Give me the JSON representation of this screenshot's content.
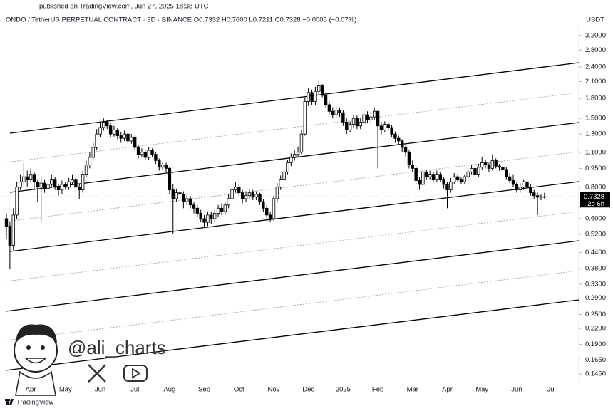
{
  "header": {
    "published": "published on TradingView.com, Jun 27, 2025 18:38 UTC",
    "symbol_line": "ONDO / TetherUS PERPETUAL CONTRACT · 3D · BINANCE  O0.7332  H0.7600  L0.7211  C0.7328  −0.0005 (−0.07%)",
    "currency": "USDT"
  },
  "chart_data": {
    "type": "candlestick",
    "categories": [
      null,
      null,
      null,
      null,
      null,
      null,
      null,
      "Apr",
      null,
      null,
      null,
      null,
      null,
      null,
      null,
      null,
      null,
      "May",
      null,
      null,
      null,
      null,
      null,
      null,
      null,
      null,
      null,
      "Jun",
      null,
      null,
      null,
      null,
      null,
      null,
      null,
      null,
      null,
      "Jul",
      null,
      null,
      null,
      null,
      null,
      null,
      null,
      null,
      null,
      "Aug",
      null,
      null,
      null,
      null,
      null,
      null,
      null,
      null,
      null,
      "Sep",
      null,
      null,
      null,
      null,
      null,
      null,
      null,
      null,
      null,
      "Oct",
      null,
      null,
      null,
      null,
      null,
      null,
      null,
      null,
      null,
      "Nov",
      null,
      null,
      null,
      null,
      null,
      null,
      null,
      null,
      null,
      "Dec",
      null,
      null,
      null,
      null,
      null,
      null,
      null,
      null,
      null,
      "2025",
      null,
      null,
      null,
      null,
      null,
      null,
      null,
      null,
      null,
      "Feb",
      null,
      null,
      null,
      null,
      null,
      null,
      null,
      null,
      null,
      "Mar",
      null,
      null,
      null,
      null,
      null,
      null,
      null,
      null,
      null,
      "Apr",
      null,
      null,
      null,
      null,
      null,
      null,
      null,
      null,
      null,
      "May",
      null,
      null,
      null,
      null,
      null,
      null,
      null,
      null,
      null,
      "Jun",
      null,
      null,
      null,
      null,
      null,
      null,
      null,
      null,
      null,
      "Jul"
    ],
    "open": [
      0.6,
      0.56,
      0.47,
      0.62,
      0.8,
      0.84,
      0.88,
      0.86,
      0.9,
      0.84,
      0.8,
      0.83,
      0.79,
      0.82,
      0.86,
      0.8,
      0.78,
      0.82,
      0.8,
      0.84,
      0.86,
      0.8,
      0.78,
      0.9,
      0.98,
      1.05,
      1.15,
      1.3,
      1.38,
      1.45,
      1.4,
      1.3,
      1.35,
      1.28,
      1.25,
      1.3,
      1.22,
      1.26,
      1.15,
      1.08,
      1.1,
      1.05,
      1.12,
      1.08,
      1.02,
      0.96,
      0.98,
      0.95,
      0.78,
      0.72,
      0.76,
      0.75,
      0.7,
      0.72,
      0.68,
      0.66,
      0.63,
      0.6,
      0.58,
      0.62,
      0.6,
      0.63,
      0.66,
      0.64,
      0.68,
      0.72,
      0.78,
      0.8,
      0.76,
      0.72,
      0.74,
      0.76,
      0.73,
      0.75,
      0.7,
      0.66,
      0.62,
      0.6,
      0.72,
      0.8,
      0.86,
      0.92,
      1.0,
      1.05,
      1.08,
      1.1,
      1.3,
      1.75,
      1.9,
      1.75,
      1.92,
      2.02,
      1.85,
      1.7,
      1.6,
      1.55,
      1.62,
      1.58,
      1.45,
      1.35,
      1.42,
      1.5,
      1.4,
      1.45,
      1.55,
      1.48,
      1.52,
      1.6,
      1.4,
      1.35,
      1.42,
      1.38,
      1.3,
      1.25,
      1.22,
      1.15,
      1.1,
      0.98,
      0.95,
      0.85,
      0.82,
      0.92,
      0.88,
      0.9,
      0.86,
      0.9,
      0.86,
      0.82,
      0.78,
      0.84,
      0.88,
      0.86,
      0.84,
      0.88,
      0.92,
      0.95,
      0.9,
      0.96,
      1.0,
      0.98,
      0.95,
      1.02,
      0.97,
      0.96,
      0.94,
      0.88,
      0.85,
      0.82,
      0.78,
      0.8,
      0.84,
      0.8,
      0.76,
      0.74,
      0.73,
      0.7332,
      null,
      null
    ],
    "high": [
      0.63,
      0.58,
      0.66,
      0.84,
      0.9,
      1.0,
      0.93,
      0.95,
      0.92,
      0.86,
      0.88,
      0.86,
      0.85,
      0.9,
      0.88,
      0.82,
      0.85,
      0.84,
      0.87,
      0.9,
      0.88,
      0.82,
      0.93,
      1.02,
      1.1,
      1.2,
      1.36,
      1.45,
      1.5,
      1.48,
      1.44,
      1.4,
      1.38,
      1.32,
      1.34,
      1.32,
      1.3,
      1.28,
      1.18,
      1.14,
      1.13,
      1.15,
      1.14,
      1.1,
      1.04,
      1.01,
      1.0,
      0.96,
      0.82,
      0.79,
      0.8,
      0.77,
      0.75,
      0.74,
      0.7,
      0.68,
      0.65,
      0.62,
      0.64,
      0.64,
      0.65,
      0.68,
      0.69,
      0.7,
      0.75,
      0.82,
      0.84,
      0.82,
      0.78,
      0.77,
      0.79,
      0.78,
      0.77,
      0.76,
      0.72,
      0.68,
      0.64,
      0.74,
      0.83,
      0.89,
      0.95,
      1.03,
      1.09,
      1.12,
      1.16,
      1.35,
      1.82,
      1.98,
      1.95,
      2.0,
      2.12,
      2.05,
      1.9,
      1.75,
      1.66,
      1.68,
      1.66,
      1.62,
      1.5,
      1.46,
      1.55,
      1.54,
      1.5,
      1.62,
      1.6,
      1.58,
      1.66,
      1.62,
      1.45,
      1.46,
      1.45,
      1.41,
      1.33,
      1.28,
      1.24,
      1.18,
      1.12,
      1.02,
      0.97,
      0.88,
      0.95,
      0.94,
      0.93,
      0.92,
      0.93,
      0.92,
      0.88,
      0.84,
      0.87,
      0.91,
      0.9,
      0.88,
      0.9,
      0.95,
      0.98,
      0.97,
      0.99,
      1.05,
      1.03,
      1.0,
      1.08,
      1.04,
      0.99,
      0.98,
      0.96,
      0.91,
      0.9,
      0.84,
      0.83,
      0.86,
      0.86,
      0.82,
      0.78,
      0.76,
      0.75,
      0.76,
      null,
      null
    ],
    "low": [
      0.5,
      0.38,
      0.45,
      0.6,
      0.78,
      0.82,
      0.8,
      0.84,
      0.78,
      0.7,
      0.58,
      0.76,
      0.77,
      0.8,
      0.78,
      0.74,
      0.75,
      0.78,
      0.78,
      0.82,
      0.77,
      0.72,
      0.76,
      0.88,
      0.95,
      1.02,
      1.12,
      1.26,
      1.34,
      1.36,
      1.26,
      1.27,
      1.24,
      1.2,
      1.22,
      1.18,
      1.19,
      1.12,
      1.04,
      1.05,
      1.02,
      1.03,
      1.05,
      0.99,
      0.93,
      0.94,
      0.92,
      0.75,
      0.52,
      0.7,
      0.72,
      0.66,
      0.68,
      0.66,
      0.63,
      0.61,
      0.58,
      0.55,
      0.56,
      0.57,
      0.58,
      0.61,
      0.62,
      0.62,
      0.66,
      0.7,
      0.76,
      0.74,
      0.69,
      0.7,
      0.72,
      0.71,
      0.71,
      0.68,
      0.64,
      0.6,
      0.58,
      0.59,
      0.7,
      0.78,
      0.84,
      0.9,
      0.97,
      1.02,
      1.05,
      1.08,
      1.28,
      1.68,
      1.7,
      1.7,
      1.85,
      1.82,
      1.66,
      1.56,
      1.5,
      1.5,
      1.52,
      1.4,
      1.3,
      1.32,
      1.38,
      1.36,
      1.36,
      1.42,
      1.44,
      1.44,
      1.48,
      0.95,
      1.3,
      1.32,
      1.34,
      1.26,
      1.2,
      1.18,
      1.1,
      1.06,
      0.95,
      0.92,
      0.82,
      0.78,
      0.8,
      0.86,
      0.86,
      0.84,
      0.84,
      0.84,
      0.79,
      0.66,
      0.76,
      0.82,
      0.84,
      0.82,
      0.82,
      0.86,
      0.9,
      0.88,
      0.88,
      0.94,
      0.95,
      0.92,
      0.93,
      0.95,
      0.93,
      0.92,
      0.86,
      0.83,
      0.8,
      0.76,
      0.76,
      0.78,
      0.78,
      0.74,
      0.72,
      0.62,
      0.71,
      0.7211,
      null,
      null
    ],
    "close": [
      0.56,
      0.47,
      0.62,
      0.8,
      0.84,
      0.88,
      0.86,
      0.9,
      0.84,
      0.8,
      0.83,
      0.79,
      0.82,
      0.86,
      0.8,
      0.78,
      0.82,
      0.8,
      0.84,
      0.86,
      0.8,
      0.78,
      0.9,
      0.98,
      1.05,
      1.15,
      1.3,
      1.38,
      1.45,
      1.4,
      1.3,
      1.35,
      1.28,
      1.25,
      1.3,
      1.22,
      1.26,
      1.15,
      1.08,
      1.1,
      1.05,
      1.12,
      1.08,
      1.02,
      0.96,
      0.98,
      0.95,
      0.78,
      0.72,
      0.76,
      0.75,
      0.7,
      0.72,
      0.68,
      0.66,
      0.63,
      0.6,
      0.58,
      0.62,
      0.6,
      0.63,
      0.66,
      0.64,
      0.68,
      0.72,
      0.78,
      0.8,
      0.76,
      0.72,
      0.74,
      0.76,
      0.73,
      0.75,
      0.7,
      0.66,
      0.62,
      0.6,
      0.72,
      0.8,
      0.86,
      0.92,
      1.0,
      1.05,
      1.08,
      1.1,
      1.3,
      1.75,
      1.9,
      1.75,
      1.92,
      2.02,
      1.85,
      1.7,
      1.6,
      1.55,
      1.62,
      1.58,
      1.45,
      1.35,
      1.42,
      1.5,
      1.4,
      1.45,
      1.55,
      1.48,
      1.52,
      1.6,
      1.4,
      1.35,
      1.42,
      1.38,
      1.3,
      1.25,
      1.22,
      1.15,
      1.1,
      0.98,
      0.95,
      0.85,
      0.82,
      0.92,
      0.88,
      0.9,
      0.86,
      0.9,
      0.86,
      0.82,
      0.78,
      0.84,
      0.88,
      0.86,
      0.84,
      0.88,
      0.92,
      0.95,
      0.9,
      0.96,
      1.0,
      0.98,
      0.95,
      1.02,
      0.97,
      0.96,
      0.94,
      0.88,
      0.85,
      0.82,
      0.78,
      0.8,
      0.84,
      0.8,
      0.76,
      0.74,
      0.73,
      0.7332,
      0.7328,
      null,
      null
    ],
    "up_color": "#ffffff",
    "down_color": "#000000",
    "log_scale": true,
    "ylim": [
      0.136,
      3.41
    ],
    "yticks": [
      {
        "value": 3.2,
        "label": "3.2000"
      },
      {
        "value": 2.8,
        "label": "2.8000"
      },
      {
        "value": 2.4,
        "label": "2.4000"
      },
      {
        "value": 2.1,
        "label": "2.1000"
      },
      {
        "value": 1.8,
        "label": "1.8000"
      },
      {
        "value": 1.5,
        "label": "1.5000"
      },
      {
        "value": 1.3,
        "label": "1.3000"
      },
      {
        "value": 1.1,
        "label": "1.1000"
      },
      {
        "value": 0.95,
        "label": "0.9500"
      },
      {
        "value": 0.8,
        "label": "0.8000"
      },
      {
        "value": 0.6,
        "label": "0.6000"
      },
      {
        "value": 0.52,
        "label": "0.5200"
      },
      {
        "value": 0.44,
        "label": "0.4400"
      },
      {
        "value": 0.38,
        "label": "0.3800"
      },
      {
        "value": 0.33,
        "label": "0.3300"
      },
      {
        "value": 0.29,
        "label": "0.2900"
      },
      {
        "value": 0.25,
        "label": "0.2500"
      },
      {
        "value": 0.22,
        "label": "0.2200"
      },
      {
        "value": 0.19,
        "label": "0.1900"
      },
      {
        "value": 0.165,
        "label": "0.1650"
      },
      {
        "value": 0.145,
        "label": "0.1450"
      }
    ],
    "countdown": "2d 6h"
  },
  "watermark": {
    "handle": "@ali_charts"
  },
  "footer": {
    "brand": "TradingView"
  }
}
